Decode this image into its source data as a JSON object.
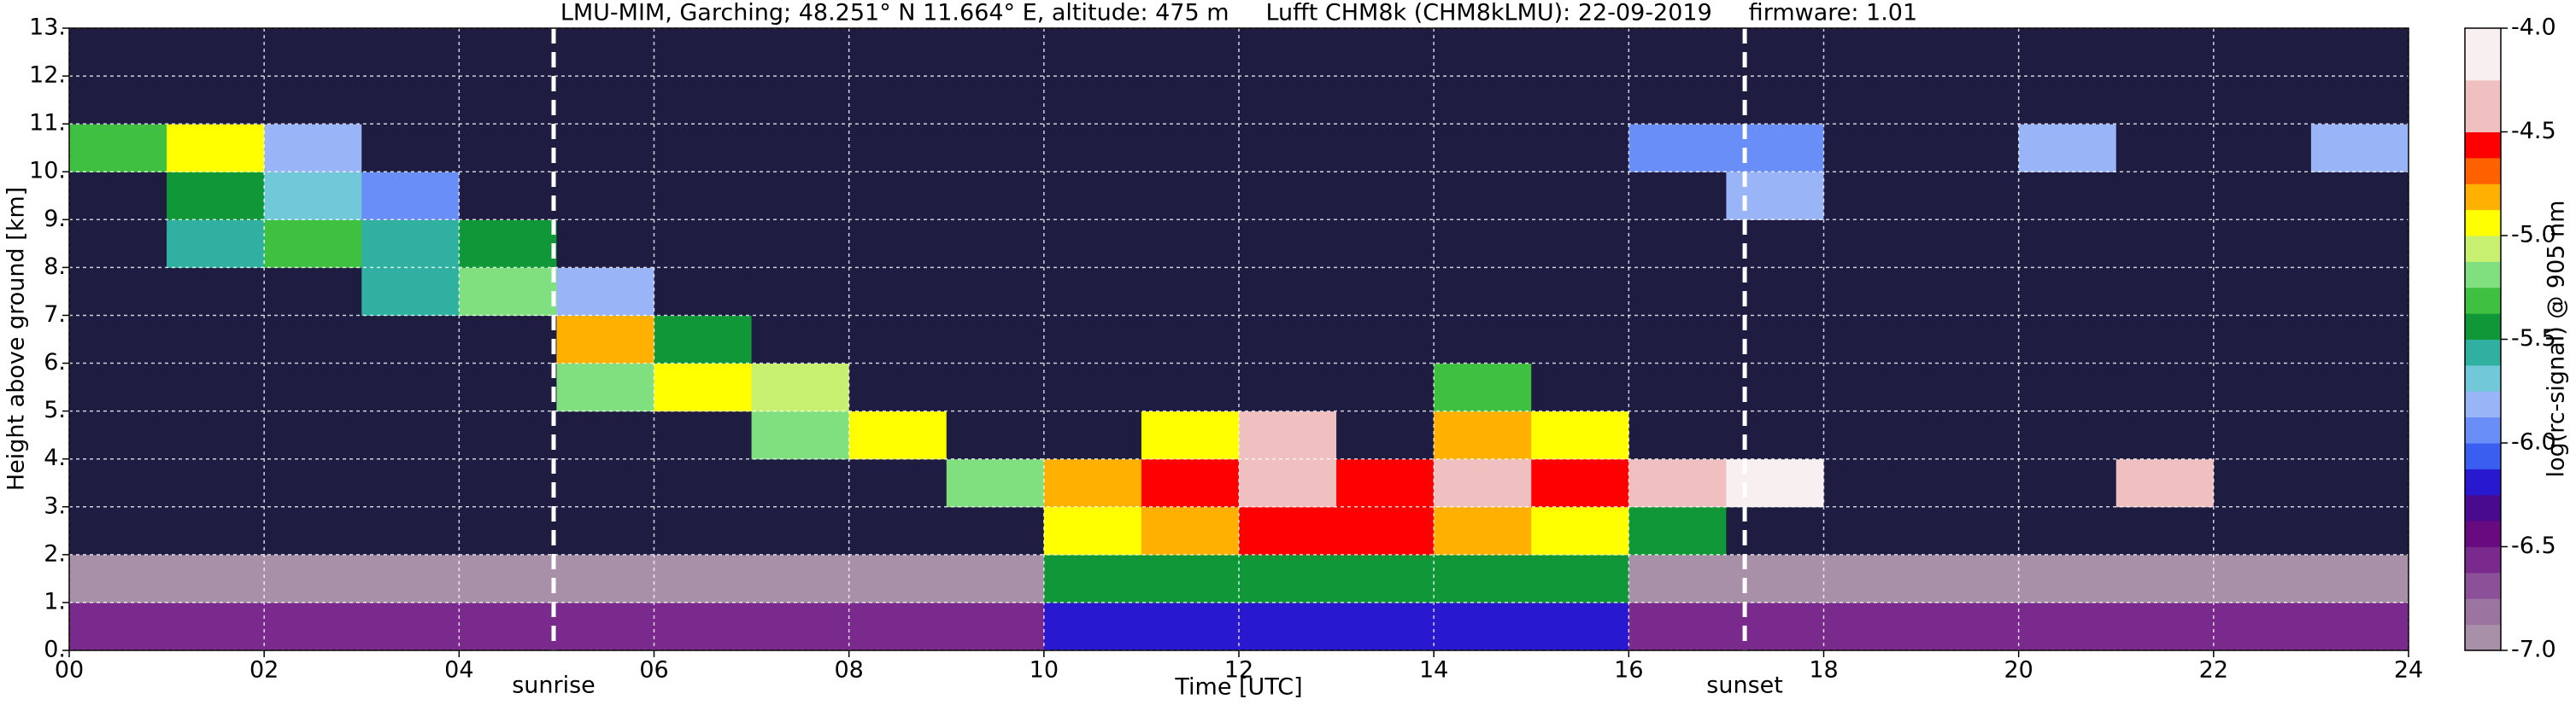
{
  "chart_data": {
    "type": "heatmap",
    "title": "LMU-MIM, Garching; 48.251° N 11.664° E, altitude: 475 m     Lufft CHM8k (CHM8kLMU): 22-09-2019     firmware: 1.01",
    "x_label": "Time [UTC]",
    "y_label": "Height above ground [km]",
    "colorbar_label": "log(rc-signal) @ 905 nm",
    "xlim": [
      0,
      24
    ],
    "ylim": [
      0,
      13
    ],
    "xticks": [
      {
        "value": 0,
        "label": "00"
      },
      {
        "value": 2,
        "label": "02"
      },
      {
        "value": 4,
        "label": "04"
      },
      {
        "value": 6,
        "label": "06"
      },
      {
        "value": 8,
        "label": "08"
      },
      {
        "value": 10,
        "label": "10"
      },
      {
        "value": 12,
        "label": "12"
      },
      {
        "value": 14,
        "label": "14"
      },
      {
        "value": 16,
        "label": "16"
      },
      {
        "value": 18,
        "label": "18"
      },
      {
        "value": 20,
        "label": "20"
      },
      {
        "value": 22,
        "label": "22"
      },
      {
        "value": 24,
        "label": "24"
      }
    ],
    "yticks": [
      {
        "value": 0,
        "label": "0."
      },
      {
        "value": 1,
        "label": "1."
      },
      {
        "value": 2,
        "label": "2."
      },
      {
        "value": 3,
        "label": "3."
      },
      {
        "value": 4,
        "label": "4."
      },
      {
        "value": 5,
        "label": "5."
      },
      {
        "value": 6,
        "label": "6."
      },
      {
        "value": 7,
        "label": "7."
      },
      {
        "value": 8,
        "label": "8."
      },
      {
        "value": 9,
        "label": "9."
      },
      {
        "value": 10,
        "label": "10."
      },
      {
        "value": 11,
        "label": "11."
      },
      {
        "value": 12,
        "label": "12."
      },
      {
        "value": 13,
        "label": "13."
      }
    ],
    "grid": true,
    "xbins": [
      0,
      1,
      2,
      3,
      4,
      5,
      6,
      7,
      8,
      9,
      10,
      11,
      12,
      13,
      14,
      15,
      16,
      17,
      18,
      19,
      20,
      21,
      22,
      23,
      24
    ],
    "ybins": [
      0,
      1,
      2,
      3,
      4,
      5,
      6,
      7,
      8,
      9,
      10,
      11,
      12,
      13
    ],
    "z": [
      [
        -6.6,
        -6.6,
        -6.6,
        -6.6,
        -6.6,
        -6.6,
        -6.6,
        -6.6,
        -6.6,
        -6.6,
        -6.2,
        -6.2,
        -6.2,
        -6.2,
        -6.2,
        -6.2,
        -6.6,
        -6.6,
        -6.6,
        -6.6,
        -6.6,
        -6.6,
        -6.6,
        -6.6
      ],
      [
        -7.0,
        -7.0,
        -7.0,
        -7.0,
        -7.0,
        -7.0,
        -7.0,
        -7.0,
        -7.0,
        -7.0,
        -5.5,
        -5.5,
        -5.5,
        -5.5,
        -5.5,
        -5.5,
        -7.0,
        -7.0,
        -7.0,
        -7.0,
        -7.0,
        -7.0,
        -7.0,
        -7.0
      ],
      [
        -7.5,
        -7.5,
        -7.5,
        -7.5,
        -7.5,
        -7.5,
        -7.5,
        -7.5,
        -7.5,
        -7.5,
        -5.0,
        -4.8,
        -4.6,
        -4.6,
        -4.8,
        -5.0,
        -5.5,
        -7.5,
        -7.5,
        -7.5,
        -7.5,
        -7.5,
        -7.5,
        -7.5
      ],
      [
        -7.5,
        -7.5,
        -7.5,
        -7.5,
        -7.5,
        -7.5,
        -7.5,
        -7.5,
        -7.5,
        -5.2,
        -4.8,
        -4.6,
        -4.4,
        -4.6,
        -4.4,
        -4.6,
        -4.3,
        -4.2,
        -7.5,
        -7.5,
        -7.5,
        -4.3,
        -7.5,
        -7.5
      ],
      [
        -7.5,
        -7.5,
        -7.5,
        -7.5,
        -7.5,
        -7.5,
        -7.5,
        -5.2,
        -5.0,
        -7.5,
        -7.5,
        -4.9,
        -4.3,
        -7.5,
        -4.8,
        -4.9,
        -7.5,
        -7.5,
        -7.5,
        -7.5,
        -7.5,
        -7.5,
        -7.5,
        -7.5
      ],
      [
        -7.5,
        -7.5,
        -7.5,
        -7.5,
        -7.5,
        -5.2,
        -4.9,
        -5.1,
        -7.5,
        -7.5,
        -7.5,
        -7.5,
        -7.5,
        -7.5,
        -5.3,
        -7.5,
        -7.5,
        -7.5,
        -7.5,
        -7.5,
        -7.5,
        -7.5,
        -7.5,
        -7.5
      ],
      [
        -7.5,
        -7.5,
        -7.5,
        -7.5,
        -7.5,
        -4.8,
        -5.5,
        -7.5,
        -7.5,
        -7.5,
        -7.5,
        -7.5,
        -7.5,
        -7.5,
        -7.5,
        -7.5,
        -7.5,
        -7.5,
        -7.5,
        -7.5,
        -7.5,
        -7.5,
        -7.5,
        -7.5
      ],
      [
        -7.5,
        -7.5,
        -7.5,
        -5.6,
        -5.2,
        -5.8,
        -7.5,
        -7.5,
        -7.5,
        -7.5,
        -7.5,
        -7.5,
        -7.5,
        -7.5,
        -7.5,
        -7.5,
        -7.5,
        -7.5,
        -7.5,
        -7.5,
        -7.5,
        -7.5,
        -7.5,
        -7.5
      ],
      [
        -7.5,
        -5.6,
        -5.3,
        -5.6,
        -5.4,
        -7.5,
        -7.5,
        -7.5,
        -7.5,
        -7.5,
        -7.5,
        -7.5,
        -7.5,
        -7.5,
        -7.5,
        -7.5,
        -7.5,
        -7.5,
        -7.5,
        -7.5,
        -7.5,
        -7.5,
        -7.5,
        -7.5
      ],
      [
        -7.5,
        -5.5,
        -5.7,
        -5.9,
        -7.5,
        -7.5,
        -7.5,
        -7.5,
        -7.5,
        -7.5,
        -7.5,
        -7.5,
        -7.5,
        -7.5,
        -7.5,
        -7.5,
        -7.5,
        -5.8,
        -7.5,
        -7.5,
        -7.5,
        -7.5,
        -7.5,
        -7.5
      ],
      [
        -5.3,
        -5.0,
        -5.8,
        -7.5,
        -7.5,
        -7.5,
        -7.5,
        -7.5,
        -7.5,
        -7.5,
        -7.5,
        -7.5,
        -7.5,
        -7.5,
        -7.5,
        -7.5,
        -6.0,
        -6.0,
        -7.5,
        -7.5,
        -5.8,
        -7.5,
        -7.5,
        -5.8
      ],
      [
        -7.5,
        -7.5,
        -7.5,
        -7.5,
        -7.5,
        -7.5,
        -7.5,
        -7.5,
        -7.5,
        -7.5,
        -7.5,
        -7.5,
        -7.5,
        -7.5,
        -7.5,
        -7.5,
        -7.5,
        -7.5,
        -7.5,
        -7.5,
        -7.5,
        -7.5,
        -7.5,
        -7.5
      ],
      [
        -7.5,
        -7.5,
        -7.5,
        -7.5,
        -7.5,
        -7.5,
        -7.5,
        -7.5,
        -7.5,
        -7.5,
        -7.5,
        -7.5,
        -7.5,
        -7.5,
        -7.5,
        -7.5,
        -7.5,
        -7.5,
        -7.5,
        -7.5,
        -7.5,
        -7.5,
        -7.5,
        -7.5
      ]
    ],
    "colorscale": {
      "levels": [
        -7.0,
        -6.875,
        -6.75,
        -6.625,
        -6.5,
        -6.375,
        -6.25,
        -6.125,
        -6.0,
        -5.875,
        -5.75,
        -5.625,
        -5.5,
        -5.375,
        -5.25,
        -5.125,
        -5.0,
        -4.875,
        -4.75,
        -4.625,
        -4.5,
        -4.25,
        -4.0
      ],
      "colors": [
        "#a890a8",
        "#9c74a0",
        "#8c5098",
        "#7a2a8c",
        "#680a80",
        "#4a0a90",
        "#2818d0",
        "#3a5ef0",
        "#6a8ef8",
        "#9ab4f8",
        "#70c8d8",
        "#30b0a0",
        "#109838",
        "#40c040",
        "#80e080",
        "#c8f070",
        "#ffff00",
        "#ffb000",
        "#ff6000",
        "#ff0000",
        "#f0c0c0",
        "#f8f0f0"
      ],
      "under_color": "#1e1c40",
      "ticks": [
        {
          "value": -4.0,
          "label": "-4.0"
        },
        {
          "value": -4.5,
          "label": "-4.5"
        },
        {
          "value": -5.0,
          "label": "-5.0"
        },
        {
          "value": -5.5,
          "label": "-5.5"
        },
        {
          "value": -6.0,
          "label": "-6.0"
        },
        {
          "value": -6.5,
          "label": "-6.5"
        },
        {
          "value": -7.0,
          "label": "-7.0"
        }
      ]
    },
    "markers": [
      {
        "x": 4.97,
        "label": "sunrise"
      },
      {
        "x": 17.19,
        "label": "sunset"
      }
    ]
  }
}
